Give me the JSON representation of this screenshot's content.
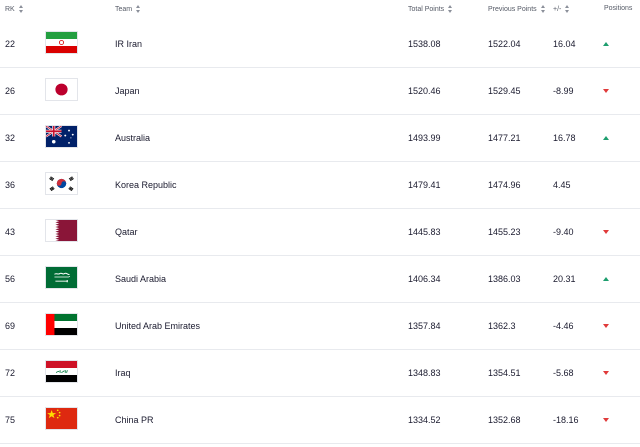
{
  "header": {
    "rk": "RK",
    "team": "Team",
    "total_points": "Total Points",
    "previous_points": "Previous Points",
    "diff": "+/-",
    "positions": "Positions"
  },
  "colors": {
    "up": "#1d9e6e",
    "down": "#e03a3a",
    "row_border": "#e8eaee"
  },
  "rows": [
    {
      "rank": "22",
      "team": "IR Iran",
      "flag": "iran-flag-icon",
      "total": "1538.08",
      "previous": "1522.04",
      "diff": "16.04",
      "position": "up"
    },
    {
      "rank": "26",
      "team": "Japan",
      "flag": "japan-flag-icon",
      "total": "1520.46",
      "previous": "1529.45",
      "diff": "-8.99",
      "position": "down"
    },
    {
      "rank": "32",
      "team": "Australia",
      "flag": "australia-flag-icon",
      "total": "1493.99",
      "previous": "1477.21",
      "diff": "16.78",
      "position": "up"
    },
    {
      "rank": "36",
      "team": "Korea Republic",
      "flag": "korea-flag-icon",
      "total": "1479.41",
      "previous": "1474.96",
      "diff": "4.45",
      "position": "none"
    },
    {
      "rank": "43",
      "team": "Qatar",
      "flag": "qatar-flag-icon",
      "total": "1445.83",
      "previous": "1455.23",
      "diff": "-9.40",
      "position": "down"
    },
    {
      "rank": "56",
      "team": "Saudi Arabia",
      "flag": "saudi-flag-icon",
      "total": "1406.34",
      "previous": "1386.03",
      "diff": "20.31",
      "position": "up"
    },
    {
      "rank": "69",
      "team": "United Arab Emirates",
      "flag": "uae-flag-icon",
      "total": "1357.84",
      "previous": "1362.3",
      "diff": "-4.46",
      "position": "down"
    },
    {
      "rank": "72",
      "team": "Iraq",
      "flag": "iraq-flag-icon",
      "total": "1348.83",
      "previous": "1354.51",
      "diff": "-5.68",
      "position": "down"
    },
    {
      "rank": "75",
      "team": "China PR",
      "flag": "china-flag-icon",
      "total": "1334.52",
      "previous": "1352.68",
      "diff": "-18.16",
      "position": "down"
    }
  ]
}
